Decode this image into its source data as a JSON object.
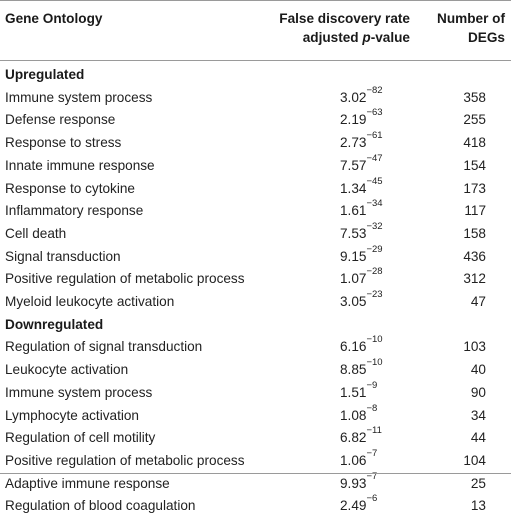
{
  "header": {
    "col1": "Gene Ontology",
    "col2_line1": "False discovery rate",
    "col2_line2_prefix": "adjusted ",
    "col2_line2_italic": "p",
    "col2_line2_suffix": "-value",
    "col3_line1": "Number of",
    "col3_line2": "DEGs"
  },
  "sections": [
    {
      "label": "Upregulated",
      "rows": [
        {
          "term": "Immune system process",
          "mantissa": "3.02",
          "exponent": "−82",
          "degs": "358"
        },
        {
          "term": "Defense response",
          "mantissa": "2.19",
          "exponent": "−63",
          "degs": "255"
        },
        {
          "term": "Response to stress",
          "mantissa": "2.73",
          "exponent": "−61",
          "degs": "418"
        },
        {
          "term": "Innate immune response",
          "mantissa": "7.57",
          "exponent": "−47",
          "degs": "154"
        },
        {
          "term": "Response to cytokine",
          "mantissa": "1.34",
          "exponent": "−45",
          "degs": "173"
        },
        {
          "term": "Inflammatory response",
          "mantissa": "1.61",
          "exponent": "−34",
          "degs": "117"
        },
        {
          "term": "Cell death",
          "mantissa": "7.53",
          "exponent": "−32",
          "degs": "158"
        },
        {
          "term": "Signal transduction",
          "mantissa": "9.15",
          "exponent": "−29",
          "degs": "436"
        },
        {
          "term": "Positive regulation of metabolic process",
          "mantissa": "1.07",
          "exponent": "−28",
          "degs": "312"
        },
        {
          "term": "Myeloid leukocyte activation",
          "mantissa": "3.05",
          "exponent": "−23",
          "degs": "47"
        }
      ]
    },
    {
      "label": "Downregulated",
      "rows": [
        {
          "term": "Regulation of signal transduction",
          "mantissa": "6.16",
          "exponent": "−10",
          "degs": "103"
        },
        {
          "term": "Leukocyte activation",
          "mantissa": "8.85",
          "exponent": "−10",
          "degs": "40"
        },
        {
          "term": "Immune system process",
          "mantissa": "1.51",
          "exponent": "−9",
          "degs": "90"
        },
        {
          "term": "Lymphocyte activation",
          "mantissa": "1.08",
          "exponent": "−8",
          "degs": "34"
        },
        {
          "term": "Regulation of cell motility",
          "mantissa": "6.82",
          "exponent": "−11",
          "degs": "44"
        },
        {
          "term": "Positive regulation of metabolic process",
          "mantissa": "1.06",
          "exponent": "−7",
          "degs": "104"
        },
        {
          "term": "Adaptive immune response",
          "mantissa": "9.93",
          "exponent": "−7",
          "degs": "25"
        },
        {
          "term": "Regulation of blood coagulation",
          "mantissa": "2.49",
          "exponent": "−6",
          "degs": "13"
        }
      ]
    }
  ]
}
